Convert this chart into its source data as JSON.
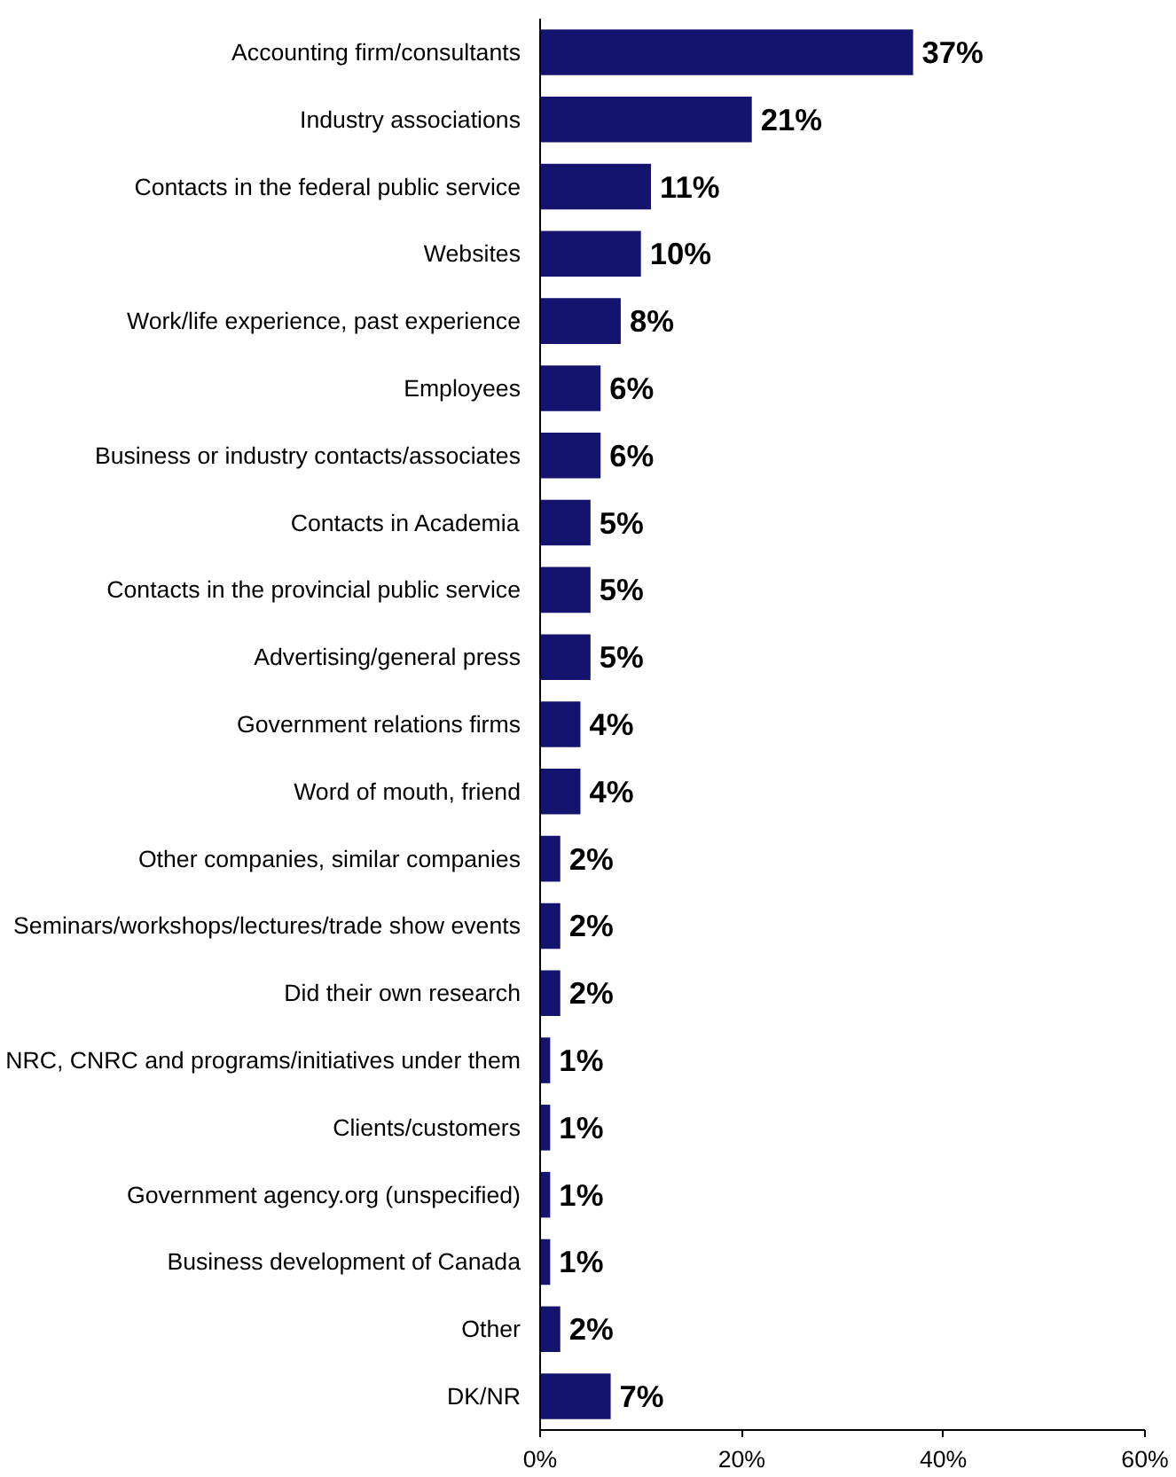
{
  "chart_data": {
    "type": "bar",
    "orientation": "horizontal",
    "categories": [
      "Accounting firm/consultants",
      "Industry associations",
      "Contacts in the federal public service",
      "Websites",
      "Work/life experience, past experience",
      "Employees",
      "Business or industry contacts/associates",
      "Contacts in Academia",
      "Contacts in the provincial public service",
      "Advertising/general press",
      "Government relations firms",
      "Word of mouth, friend",
      "Other companies, similar companies",
      "Seminars/workshops/lectures/trade show events",
      "Did their own research",
      "NRC, CNRC and programs/initiatives under them",
      "Clients/customers",
      "Government agency.org (unspecified)",
      "Business development of Canada",
      "Other",
      "DK/NR"
    ],
    "values": [
      37,
      21,
      11,
      10,
      8,
      6,
      6,
      5,
      5,
      5,
      4,
      4,
      2,
      2,
      2,
      1,
      1,
      1,
      1,
      2,
      7
    ],
    "value_labels": [
      "37%",
      "21%",
      "11%",
      "10%",
      "8%",
      "6%",
      "6%",
      "5%",
      "5%",
      "5%",
      "4%",
      "4%",
      "2%",
      "2%",
      "2%",
      "1%",
      "1%",
      "1%",
      "1%",
      "2%",
      "7%"
    ],
    "color": "#14146e",
    "xlim": [
      0,
      60
    ],
    "xticks": [
      {
        "value": 0,
        "label": "0%"
      },
      {
        "value": 20,
        "label": "20%"
      },
      {
        "value": 40,
        "label": "40%"
      },
      {
        "value": 60,
        "label": "60%"
      }
    ],
    "grid": false
  }
}
